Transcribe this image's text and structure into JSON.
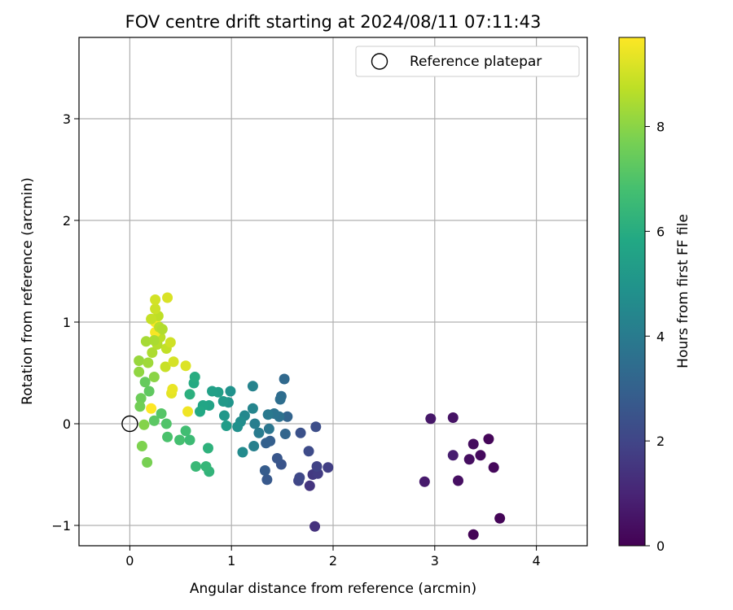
{
  "chart_data": {
    "type": "scatter",
    "title": "FOV centre drift starting at 2024/08/11 07:11:43",
    "xlabel": "Angular distance from reference (arcmin)",
    "ylabel": "Rotation from reference (arcmin)",
    "xlim": [
      -0.5,
      4.5
    ],
    "ylim": [
      -1.2,
      3.8
    ],
    "xticks": [
      0,
      1,
      2,
      3,
      4
    ],
    "yticks": [
      -1,
      0,
      1,
      2,
      3
    ],
    "grid": true,
    "legend": {
      "placement": "top-right",
      "entries": [
        "Reference platepar"
      ]
    },
    "colorbar": {
      "label": "Hours from first FF file",
      "range": [
        0,
        9.7
      ],
      "ticks": [
        0,
        2,
        4,
        6,
        8
      ],
      "colormap": "viridis"
    },
    "reference_point": {
      "x": 0,
      "y": 0
    },
    "points": [
      [
        3.38,
        -1.09,
        0.05
      ],
      [
        3.64,
        -0.93,
        0.1
      ],
      [
        3.53,
        -0.15,
        0.15
      ],
      [
        3.58,
        -0.43,
        0.2
      ],
      [
        3.45,
        -0.31,
        0.25
      ],
      [
        3.38,
        -0.2,
        0.3
      ],
      [
        3.34,
        -0.35,
        0.35
      ],
      [
        3.23,
        -0.56,
        0.4
      ],
      [
        3.18,
        0.06,
        0.5
      ],
      [
        2.96,
        0.05,
        0.6
      ],
      [
        2.9,
        -0.57,
        0.7
      ],
      [
        3.18,
        -0.31,
        0.8
      ],
      [
        1.82,
        -1.01,
        1.4
      ],
      [
        1.77,
        -0.61,
        1.5
      ],
      [
        1.8,
        -0.5,
        1.6
      ],
      [
        1.85,
        -0.49,
        1.7
      ],
      [
        1.95,
        -0.43,
        1.8
      ],
      [
        1.84,
        -0.42,
        1.9
      ],
      [
        1.66,
        -0.56,
        2.0
      ],
      [
        1.67,
        -0.53,
        2.1
      ],
      [
        1.76,
        -0.27,
        2.2
      ],
      [
        1.83,
        -0.03,
        2.3
      ],
      [
        1.68,
        -0.09,
        2.4
      ],
      [
        1.49,
        -0.4,
        2.5
      ],
      [
        1.45,
        -0.34,
        2.6
      ],
      [
        1.35,
        -0.55,
        2.7
      ],
      [
        1.33,
        -0.46,
        2.8
      ],
      [
        1.38,
        -0.17,
        2.9
      ],
      [
        1.34,
        -0.19,
        3.0
      ],
      [
        1.55,
        0.07,
        3.1
      ],
      [
        1.53,
        -0.1,
        3.2
      ],
      [
        1.52,
        0.44,
        3.3
      ],
      [
        1.49,
        0.27,
        3.4
      ],
      [
        1.48,
        0.24,
        3.5
      ],
      [
        1.47,
        0.07,
        3.6
      ],
      [
        1.42,
        0.1,
        3.7
      ],
      [
        1.37,
        -0.05,
        3.8
      ],
      [
        1.36,
        0.09,
        3.9
      ],
      [
        1.27,
        -0.09,
        4.0
      ],
      [
        1.23,
        0.0,
        4.1
      ],
      [
        1.22,
        -0.22,
        4.2
      ],
      [
        1.21,
        0.37,
        4.3
      ],
      [
        1.21,
        0.15,
        4.4
      ],
      [
        1.13,
        0.08,
        4.5
      ],
      [
        1.11,
        -0.28,
        4.6
      ],
      [
        1.09,
        0.02,
        4.7
      ],
      [
        1.06,
        -0.03,
        4.8
      ],
      [
        0.99,
        0.32,
        4.9
      ],
      [
        0.97,
        0.21,
        5.0
      ],
      [
        0.93,
        0.08,
        5.1
      ],
      [
        0.92,
        0.22,
        5.2
      ],
      [
        0.95,
        -0.02,
        5.3
      ],
      [
        0.87,
        0.31,
        5.4
      ],
      [
        0.81,
        0.32,
        5.5
      ],
      [
        0.78,
        0.18,
        5.6
      ],
      [
        0.72,
        0.18,
        5.7
      ],
      [
        0.69,
        0.12,
        5.8
      ],
      [
        0.63,
        0.4,
        5.9
      ],
      [
        0.64,
        0.46,
        6.0
      ],
      [
        0.59,
        0.29,
        6.1
      ],
      [
        0.77,
        -0.24,
        6.2
      ],
      [
        0.78,
        -0.47,
        6.3
      ],
      [
        0.75,
        -0.42,
        6.4
      ],
      [
        0.65,
        -0.42,
        6.5
      ],
      [
        0.59,
        -0.16,
        6.6
      ],
      [
        0.55,
        -0.07,
        6.7
      ],
      [
        0.49,
        -0.16,
        6.8
      ],
      [
        0.37,
        -0.13,
        6.9
      ],
      [
        0.36,
        0.0,
        7.0
      ],
      [
        0.31,
        0.1,
        7.1
      ],
      [
        0.24,
        0.03,
        7.2
      ],
      [
        0.19,
        0.32,
        7.3
      ],
      [
        0.15,
        0.41,
        7.4
      ],
      [
        0.11,
        0.25,
        7.5
      ],
      [
        0.1,
        0.17,
        7.6
      ],
      [
        0.17,
        -0.38,
        7.7
      ],
      [
        0.12,
        -0.22,
        7.8
      ],
      [
        0.14,
        -0.01,
        7.9
      ],
      [
        0.24,
        0.46,
        8.0
      ],
      [
        0.09,
        0.51,
        8.1
      ],
      [
        0.09,
        0.62,
        8.2
      ],
      [
        0.18,
        0.6,
        8.3
      ],
      [
        0.16,
        0.81,
        8.4
      ],
      [
        0.22,
        0.7,
        8.5
      ],
      [
        0.27,
        0.78,
        8.6
      ],
      [
        0.3,
        0.85,
        8.7
      ],
      [
        0.36,
        0.74,
        8.8
      ],
      [
        0.35,
        0.56,
        8.9
      ],
      [
        0.4,
        0.8,
        9.0
      ],
      [
        0.43,
        0.61,
        9.1
      ],
      [
        0.55,
        0.57,
        9.2
      ],
      [
        0.41,
        0.3,
        9.3
      ],
      [
        0.42,
        0.34,
        9.4
      ],
      [
        0.57,
        0.12,
        9.5
      ],
      [
        0.25,
        0.9,
        9.6
      ],
      [
        0.25,
        1.0,
        9.65
      ],
      [
        0.21,
        0.15,
        9.7
      ],
      [
        0.28,
        1.06,
        8.75
      ],
      [
        0.21,
        1.03,
        8.85
      ],
      [
        0.25,
        1.13,
        8.95
      ],
      [
        0.25,
        1.22,
        9.05
      ],
      [
        0.37,
        1.24,
        9.15
      ],
      [
        0.29,
        0.95,
        8.65
      ],
      [
        0.32,
        0.93,
        8.55
      ],
      [
        0.24,
        0.82,
        8.45
      ]
    ]
  }
}
